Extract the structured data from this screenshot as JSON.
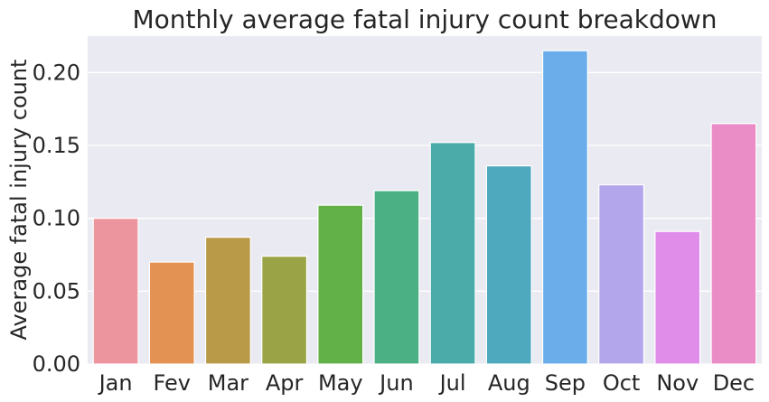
{
  "chart_data": {
    "type": "bar",
    "title": "Monthly average fatal injury count breakdown",
    "xlabel": "",
    "ylabel": "Average fatal injury count",
    "categories": [
      "Jan",
      "Fev",
      "Mar",
      "Apr",
      "May",
      "Jun",
      "Jul",
      "Aug",
      "Sep",
      "Oct",
      "Nov",
      "Dec"
    ],
    "values": [
      0.1,
      0.07,
      0.087,
      0.074,
      0.109,
      0.119,
      0.152,
      0.136,
      0.215,
      0.123,
      0.091,
      0.165
    ],
    "colors": [
      "#ed959f",
      "#e49253",
      "#b89a48",
      "#9aa446",
      "#62b148",
      "#4bb084",
      "#4aaba8",
      "#4fa9be",
      "#6badea",
      "#b4a6eb",
      "#df8de9",
      "#ea8dc7"
    ],
    "ylim": [
      0,
      0.225
    ],
    "yticks": [
      0.0,
      0.05,
      0.1,
      0.15,
      0.2
    ],
    "ytick_labels": [
      "0.00",
      "0.05",
      "0.10",
      "0.15",
      "0.20"
    ],
    "grid": true,
    "background": "#eaeaf2"
  }
}
